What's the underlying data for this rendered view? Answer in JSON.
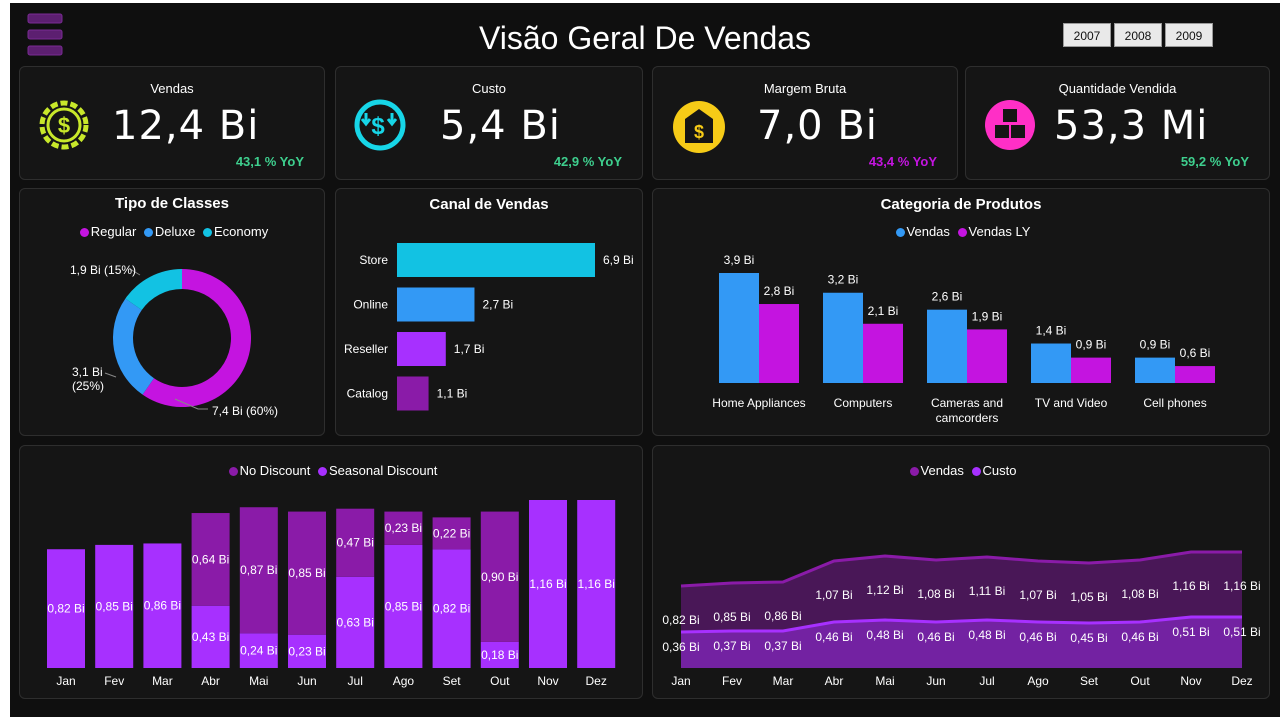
{
  "page": {
    "title": "Visão Geral De Vendas"
  },
  "year_filter": [
    "2007",
    "2008",
    "2009"
  ],
  "colors": {
    "bg": "#0f0f0f",
    "card": "#151515",
    "magenta": "#c414e0",
    "blue": "#3399f5",
    "cyan": "#12c2e3",
    "purple": "#8a1ba8",
    "violet": "#a730ff",
    "green": "#3ecf8e",
    "yellow": "#f6cb17",
    "pink": "#ff2fc6",
    "lime": "#c8e82a"
  },
  "kpis": [
    {
      "label": "Vendas",
      "value": "12,4 Bi",
      "yoy": "43,1 % YoY",
      "yoy_color": "#3ecf8e",
      "icon": "dollar-gear-icon",
      "icon_color": "#c8e82a"
    },
    {
      "label": "Custo",
      "value": "5,4 Bi",
      "yoy": "42,9 % YoY",
      "yoy_color": "#3ecf8e",
      "icon": "money-down-icon",
      "icon_color": "#17d6e8"
    },
    {
      "label": "Margem Bruta",
      "value": "7,0 Bi",
      "yoy": "43,4 % YoY",
      "yoy_color": "#c414e0",
      "icon": "money-bag-icon",
      "icon_color": "#f6cb17"
    },
    {
      "label": "Quantidade Vendida",
      "value": "53,3 Mi",
      "yoy": "59,2 % YoY",
      "yoy_color": "#3ecf8e",
      "icon": "boxes-icon",
      "icon_color": "#ff2fc6"
    }
  ],
  "chart_data": [
    {
      "type": "pie",
      "title": "Tipo de Classes",
      "legend": [
        "Regular",
        "Deluxe",
        "Economy"
      ],
      "legend_position": "top",
      "categories": [
        "Regular",
        "Deluxe",
        "Economy"
      ],
      "values": [
        7.4,
        3.1,
        1.9
      ],
      "percents": [
        60,
        25,
        15
      ],
      "labels": [
        "7,4 Bi (60%)",
        "3,1 Bi",
        "(25%)",
        "1,9 Bi (15%)"
      ],
      "colors": [
        "#c414e0",
        "#3399f5",
        "#12c2e3"
      ]
    },
    {
      "type": "bar",
      "title": "Canal de Vendas",
      "orientation": "horizontal",
      "categories": [
        "Store",
        "Online",
        "Reseller",
        "Catalog"
      ],
      "values": [
        6.9,
        2.7,
        1.7,
        1.1
      ],
      "labels": [
        "6,9 Bi",
        "2,7 Bi",
        "1,7 Bi",
        "1,1 Bi"
      ],
      "colors": [
        "#12c2e3",
        "#3399f5",
        "#a730ff",
        "#8a1ba8"
      ]
    },
    {
      "type": "bar",
      "title": "Categoria de Produtos",
      "legend_position": "top",
      "categories": [
        "Home Appliances",
        "Computers",
        "Cameras and camcorders",
        "TV and Video",
        "Cell phones"
      ],
      "category_lines": [
        [
          "Home Appliances"
        ],
        [
          "Computers"
        ],
        [
          "Cameras and",
          "camcorders"
        ],
        [
          "TV and Video"
        ],
        [
          "Cell phones"
        ]
      ],
      "series": [
        {
          "name": "Vendas",
          "values": [
            3.9,
            3.2,
            2.6,
            1.4,
            0.9
          ],
          "labels": [
            "3,9 Bi",
            "3,2 Bi",
            "2,6 Bi",
            "1,4 Bi",
            "0,9 Bi"
          ],
          "color": "#3399f5"
        },
        {
          "name": "Vendas LY",
          "values": [
            2.8,
            2.1,
            1.9,
            0.9,
            0.6
          ],
          "labels": [
            "2,8 Bi",
            "2,1 Bi",
            "1,9 Bi",
            "0,9 Bi",
            "0,6 Bi"
          ],
          "color": "#c414e0"
        }
      ]
    },
    {
      "type": "bar",
      "stacked": true,
      "legend_position": "top",
      "categories": [
        "Jan",
        "Fev",
        "Mar",
        "Abr",
        "Mai",
        "Jun",
        "Jul",
        "Ago",
        "Set",
        "Out",
        "Nov",
        "Dez"
      ],
      "series": [
        {
          "name": "Seasonal Discount",
          "color": "#a730ff",
          "values": [
            0.82,
            0.85,
            0.86,
            0.43,
            0.24,
            0.23,
            0.63,
            0.85,
            0.82,
            0.18,
            1.16,
            1.16
          ],
          "labels": [
            "0,82 Bi",
            "0,85 Bi",
            "0,86 Bi",
            "0,43 Bi",
            "0,24 Bi",
            "0,23 Bi",
            "0,63 Bi",
            "0,85 Bi",
            "0,82 Bi",
            "0,18 Bi",
            "1,16 Bi",
            "1,16 Bi"
          ]
        },
        {
          "name": "No Discount",
          "color": "#8a1ba8",
          "values": [
            0,
            0,
            0,
            0.64,
            0.87,
            0.85,
            0.47,
            0.23,
            0.22,
            0.9,
            0,
            0
          ],
          "labels": [
            "",
            "",
            "",
            "0,64 Bi",
            "0,87 Bi",
            "0,85 Bi",
            "0,47 Bi",
            "0,23 Bi",
            "0,22 Bi",
            "0,90 Bi",
            "",
            ""
          ]
        }
      ],
      "legend": [
        "No Discount",
        "Seasonal Discount"
      ]
    },
    {
      "type": "area",
      "legend_position": "top",
      "categories": [
        "Jan",
        "Fev",
        "Mar",
        "Abr",
        "Mai",
        "Jun",
        "Jul",
        "Ago",
        "Set",
        "Out",
        "Nov",
        "Dez"
      ],
      "series": [
        {
          "name": "Vendas",
          "color": "#8a1ba8",
          "values": [
            0.82,
            0.85,
            0.86,
            1.07,
            1.12,
            1.08,
            1.11,
            1.07,
            1.05,
            1.08,
            1.16,
            1.16
          ],
          "labels": [
            "0,82 Bi",
            "0,85 Bi",
            "0,86 Bi",
            "1,07 Bi",
            "1,12 Bi",
            "1,08 Bi",
            "1,11 Bi",
            "1,07 Bi",
            "1,05 Bi",
            "1,08 Bi",
            "1,16 Bi",
            "1,16 Bi"
          ]
        },
        {
          "name": "Custo",
          "color": "#a730ff",
          "values": [
            0.36,
            0.37,
            0.37,
            0.46,
            0.48,
            0.46,
            0.48,
            0.46,
            0.45,
            0.46,
            0.51,
            0.51
          ],
          "labels": [
            "0,36 Bi",
            "0,37 Bi",
            "0,37 Bi",
            "0,46 Bi",
            "0,48 Bi",
            "0,46 Bi",
            "0,48 Bi",
            "0,46 Bi",
            "0,45 Bi",
            "0,46 Bi",
            "0,51 Bi",
            "0,51 Bi"
          ]
        }
      ]
    }
  ]
}
